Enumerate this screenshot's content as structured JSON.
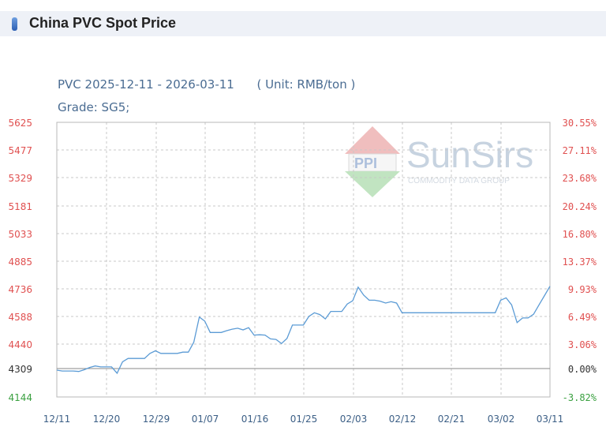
{
  "page": {
    "title": "China PVC Spot Price"
  },
  "chart_header": {
    "line1": "PVC 2025-12-11 - 2026-03-11      ( Unit: RMB/ton )",
    "line2": "Grade: SG5;"
  },
  "watermark": {
    "brand": "SunSirs",
    "tagline": "COMMODITY DATA GROUP"
  },
  "colors": {
    "line": "#5b9bd5",
    "grid": "#c8c8c8",
    "left_ticks": "#e05050",
    "right_ticks": "#e05050",
    "base_tick": "#333333",
    "low_tick": "#3aa040",
    "x_ticks": "#3c5f86"
  },
  "chart_data": {
    "type": "line",
    "title": "PVC 2025-12-11 - 2026-03-11",
    "unit": "RMB/ton",
    "grade": "SG5",
    "x_ticks": [
      "12/11",
      "12/20",
      "12/29",
      "01/07",
      "01/16",
      "01/25",
      "02/03",
      "02/12",
      "02/21",
      "03/02",
      "03/11"
    ],
    "y_left_ticks": [
      "5625",
      "5477",
      "5329",
      "5181",
      "5033",
      "4885",
      "4736",
      "4588",
      "4440",
      "4309",
      "4144"
    ],
    "y_right_ticks": [
      "30.55%",
      "27.11%",
      "23.68%",
      "20.24%",
      "16.80%",
      "13.37%",
      "9.93%",
      "6.49%",
      "3.06%",
      "0.00%",
      "-3.82%"
    ],
    "ylim": [
      4144,
      5625
    ],
    "base_value": 4309,
    "series": [
      {
        "points": [
          [
            "12/11",
            4300
          ],
          [
            "12/12",
            4295
          ],
          [
            "12/13",
            4295
          ],
          [
            "12/14",
            4295
          ],
          [
            "12/15",
            4292
          ],
          [
            "12/16",
            4302
          ],
          [
            "12/17",
            4315
          ],
          [
            "12/18",
            4323
          ],
          [
            "12/19",
            4318
          ],
          [
            "12/20",
            4318
          ],
          [
            "12/21",
            4318
          ],
          [
            "12/22",
            4282
          ],
          [
            "12/23",
            4345
          ],
          [
            "12/24",
            4363
          ],
          [
            "12/25",
            4363
          ],
          [
            "12/26",
            4363
          ],
          [
            "12/27",
            4363
          ],
          [
            "12/28",
            4390
          ],
          [
            "12/29",
            4404
          ],
          [
            "12/30",
            4390
          ],
          [
            "12/31",
            4390
          ],
          [
            "01/01",
            4390
          ],
          [
            "01/02",
            4390
          ],
          [
            "01/03",
            4397
          ],
          [
            "01/04",
            4397
          ],
          [
            "01/05",
            4450
          ],
          [
            "01/06",
            4585
          ],
          [
            "01/07",
            4563
          ],
          [
            "01/08",
            4502
          ],
          [
            "01/09",
            4502
          ],
          [
            "01/10",
            4502
          ],
          [
            "01/11",
            4512
          ],
          [
            "01/12",
            4520
          ],
          [
            "01/13",
            4525
          ],
          [
            "01/14",
            4516
          ],
          [
            "01/15",
            4528
          ],
          [
            "01/16",
            4488
          ],
          [
            "01/17",
            4490
          ],
          [
            "01/18",
            4488
          ],
          [
            "01/19",
            4468
          ],
          [
            "01/20",
            4465
          ],
          [
            "01/21",
            4443
          ],
          [
            "01/22",
            4470
          ],
          [
            "01/23",
            4542
          ],
          [
            "01/24",
            4542
          ],
          [
            "01/25",
            4542
          ],
          [
            "01/26",
            4588
          ],
          [
            "01/27",
            4608
          ],
          [
            "01/28",
            4598
          ],
          [
            "01/29",
            4575
          ],
          [
            "01/30",
            4615
          ],
          [
            "01/31",
            4615
          ],
          [
            "02/01",
            4615
          ],
          [
            "02/02",
            4655
          ],
          [
            "02/03",
            4672
          ],
          [
            "02/04",
            4745
          ],
          [
            "02/05",
            4702
          ],
          [
            "02/06",
            4675
          ],
          [
            "02/07",
            4675
          ],
          [
            "02/08",
            4670
          ],
          [
            "02/09",
            4660
          ],
          [
            "02/10",
            4667
          ],
          [
            "02/11",
            4660
          ],
          [
            "02/12",
            4608
          ],
          [
            "02/13",
            4608
          ],
          [
            "02/14",
            4608
          ],
          [
            "02/15",
            4608
          ],
          [
            "02/16",
            4608
          ],
          [
            "02/17",
            4608
          ],
          [
            "02/18",
            4608
          ],
          [
            "02/19",
            4608
          ],
          [
            "02/20",
            4608
          ],
          [
            "02/21",
            4608
          ],
          [
            "02/22",
            4608
          ],
          [
            "02/23",
            4608
          ],
          [
            "02/24",
            4608
          ],
          [
            "02/25",
            4608
          ],
          [
            "02/26",
            4608
          ],
          [
            "02/27",
            4608
          ],
          [
            "02/28",
            4608
          ],
          [
            "03/01",
            4608
          ],
          [
            "03/02",
            4675
          ],
          [
            "03/03",
            4688
          ],
          [
            "03/04",
            4650
          ],
          [
            "03/05",
            4555
          ],
          [
            "03/06",
            4580
          ],
          [
            "03/07",
            4580
          ],
          [
            "03/08",
            4600
          ],
          [
            "03/09",
            4650
          ],
          [
            "03/10",
            4700
          ],
          [
            "03/11",
            4750
          ]
        ]
      }
    ]
  }
}
